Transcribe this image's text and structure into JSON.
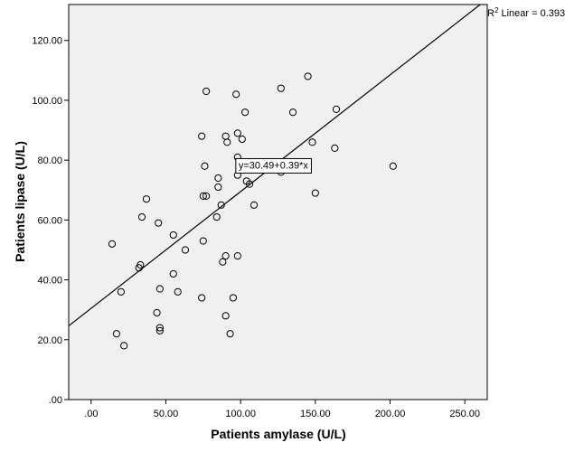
{
  "chart_data": {
    "type": "scatter",
    "title": "",
    "xlabel": "Patients amylase (U/L)",
    "ylabel": "Patients lipase (U/L)",
    "xlim": [
      -15,
      265
    ],
    "ylim": [
      0,
      132
    ],
    "x_ticks": [
      0,
      50,
      100,
      150,
      200,
      250
    ],
    "x_tick_labels": [
      ".00",
      "50.00",
      "100.00",
      "150.00",
      "200.00",
      "250.00"
    ],
    "y_ticks": [
      0,
      20,
      40,
      60,
      80,
      100,
      120
    ],
    "y_tick_labels": [
      ".00",
      "20.00",
      "40.00",
      "60.00",
      "80.00",
      "100.00",
      "120.00"
    ],
    "grid": false,
    "background_color": "#f0f0f0",
    "marker": "open-circle",
    "points": [
      [
        14,
        52
      ],
      [
        17,
        22
      ],
      [
        20,
        36
      ],
      [
        22,
        18
      ],
      [
        32,
        44
      ],
      [
        33,
        45
      ],
      [
        34,
        61
      ],
      [
        37,
        67
      ],
      [
        44,
        29
      ],
      [
        45,
        59
      ],
      [
        46,
        37
      ],
      [
        46,
        23
      ],
      [
        46,
        24
      ],
      [
        55,
        55
      ],
      [
        55,
        42
      ],
      [
        58,
        36
      ],
      [
        63,
        50
      ],
      [
        74,
        88
      ],
      [
        74,
        34
      ],
      [
        75,
        53
      ],
      [
        75,
        68
      ],
      [
        76,
        78
      ],
      [
        77,
        68
      ],
      [
        77,
        103
      ],
      [
        84,
        61
      ],
      [
        85,
        74
      ],
      [
        85,
        71
      ],
      [
        87,
        65
      ],
      [
        88,
        46
      ],
      [
        90,
        88
      ],
      [
        90,
        48
      ],
      [
        90,
        28
      ],
      [
        91,
        86
      ],
      [
        93,
        22
      ],
      [
        95,
        34
      ],
      [
        97,
        102
      ],
      [
        98,
        81
      ],
      [
        98,
        75
      ],
      [
        98,
        89
      ],
      [
        98,
        48
      ],
      [
        101,
        87
      ],
      [
        103,
        96
      ],
      [
        104,
        73
      ],
      [
        106,
        72
      ],
      [
        109,
        65
      ],
      [
        127,
        104
      ],
      [
        127,
        76
      ],
      [
        135,
        96
      ],
      [
        145,
        108
      ],
      [
        148,
        86
      ],
      [
        150,
        69
      ],
      [
        163,
        84
      ],
      [
        164,
        97
      ],
      [
        202,
        78
      ]
    ],
    "fit_line": {
      "intercept": 30.49,
      "slope": 0.39,
      "x_start": -15,
      "x_end": 265
    },
    "equation_label": "y=30.49+0.39*x",
    "equation_anchor": [
      98,
      79
    ],
    "r2_label_prefix": "R",
    "r2_label_sup": "2",
    "r2_label_suffix": " Linear = 0.393"
  }
}
